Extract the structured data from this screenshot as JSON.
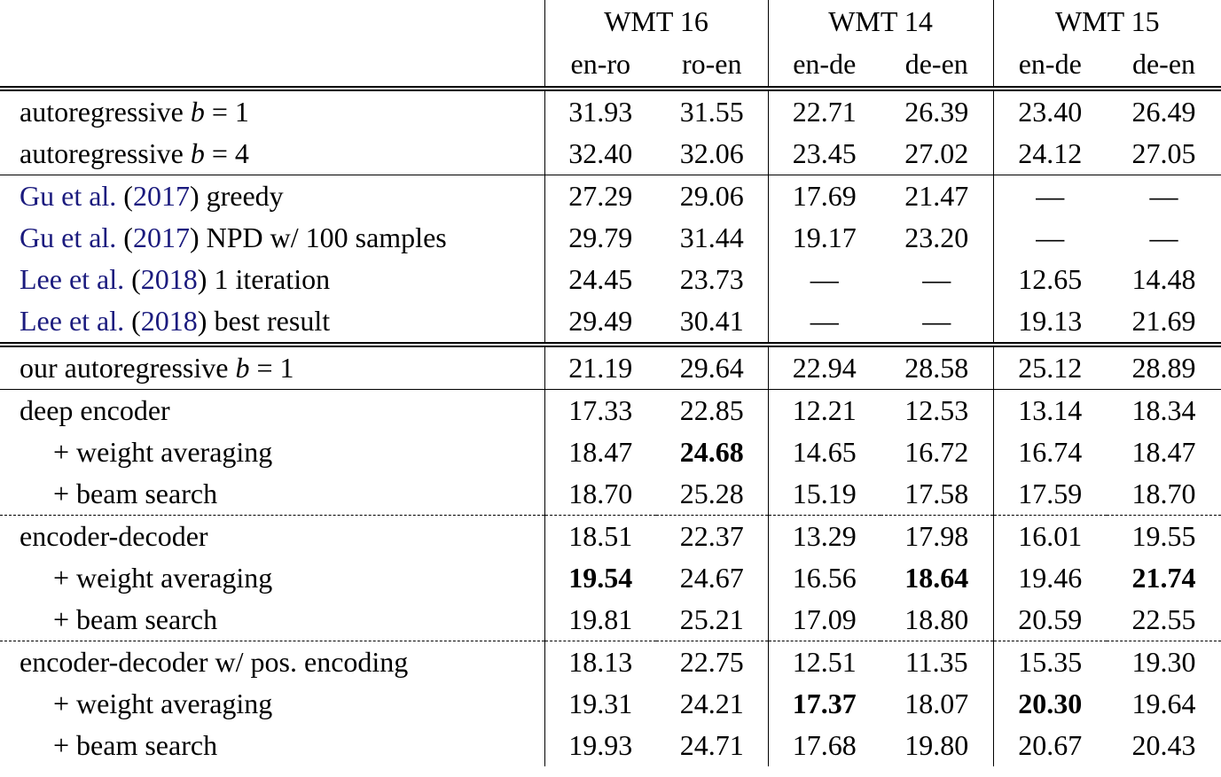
{
  "header": {
    "groups": [
      {
        "name": "WMT 16",
        "columns": [
          "en-ro",
          "ro-en"
        ]
      },
      {
        "name": "WMT 14",
        "columns": [
          "en-de",
          "de-en"
        ]
      },
      {
        "name": "WMT 15",
        "columns": [
          "en-de",
          "de-en"
        ]
      }
    ]
  },
  "table": {
    "groups": [
      {
        "border_top": "double",
        "rows": [
          {
            "label": [
              {
                "text": "autoregressive "
              },
              {
                "text": "b",
                "style": "math"
              },
              {
                "text": " = 1"
              }
            ],
            "values": [
              "31.93",
              "31.55",
              "22.71",
              "26.39",
              "23.40",
              "26.49"
            ]
          },
          {
            "label": [
              {
                "text": "autoregressive "
              },
              {
                "text": "b",
                "style": "math"
              },
              {
                "text": " = 4"
              }
            ],
            "values": [
              "32.40",
              "32.06",
              "23.45",
              "27.02",
              "24.12",
              "27.05"
            ]
          }
        ]
      },
      {
        "border_top": "solid",
        "rows": [
          {
            "label": [
              {
                "text": "Gu et al.",
                "style": "cite"
              },
              {
                "text": " ("
              },
              {
                "text": "2017",
                "style": "cite"
              },
              {
                "text": ") greedy"
              }
            ],
            "values": [
              "27.29",
              "29.06",
              "17.69",
              "21.47",
              "—",
              "—"
            ]
          },
          {
            "label": [
              {
                "text": "Gu et al.",
                "style": "cite"
              },
              {
                "text": " ("
              },
              {
                "text": "2017",
                "style": "cite"
              },
              {
                "text": ") NPD w/ 100 samples"
              }
            ],
            "values": [
              "29.79",
              "31.44",
              "19.17",
              "23.20",
              "—",
              "—"
            ]
          },
          {
            "label": [
              {
                "text": "Lee et al.",
                "style": "cite"
              },
              {
                "text": " ("
              },
              {
                "text": "2018",
                "style": "cite"
              },
              {
                "text": ") 1 iteration"
              }
            ],
            "values": [
              "24.45",
              "23.73",
              "—",
              "—",
              "12.65",
              "14.48"
            ]
          },
          {
            "label": [
              {
                "text": "Lee et al.",
                "style": "cite"
              },
              {
                "text": " ("
              },
              {
                "text": "2018",
                "style": "cite"
              },
              {
                "text": ") best result"
              }
            ],
            "values": [
              "29.49",
              "30.41",
              "—",
              "—",
              "19.13",
              "21.69"
            ]
          }
        ]
      },
      {
        "border_top": "double",
        "rows": [
          {
            "label": [
              {
                "text": "our autoregressive "
              },
              {
                "text": "b",
                "style": "math"
              },
              {
                "text": " = 1"
              }
            ],
            "values": [
              "21.19",
              "29.64",
              "22.94",
              "28.58",
              "25.12",
              "28.89"
            ]
          }
        ]
      },
      {
        "border_top": "solid",
        "rows": [
          {
            "label": [
              {
                "text": "deep encoder"
              }
            ],
            "values": [
              "17.33",
              "22.85",
              "12.21",
              "12.53",
              "13.14",
              "18.34"
            ]
          },
          {
            "label": [
              {
                "text": "+ weight averaging"
              }
            ],
            "indent": true,
            "bold": [
              1
            ],
            "values": [
              "18.47",
              "24.68",
              "14.65",
              "16.72",
              "16.74",
              "18.47"
            ]
          },
          {
            "label": [
              {
                "text": "+ beam search"
              }
            ],
            "indent": true,
            "values": [
              "18.70",
              "25.28",
              "15.19",
              "17.58",
              "17.59",
              "18.70"
            ]
          }
        ]
      },
      {
        "border_top": "dashed",
        "rows": [
          {
            "label": [
              {
                "text": "encoder-decoder"
              }
            ],
            "values": [
              "18.51",
              "22.37",
              "13.29",
              "17.98",
              "16.01",
              "19.55"
            ]
          },
          {
            "label": [
              {
                "text": "+ weight averaging"
              }
            ],
            "indent": true,
            "bold": [
              0,
              3,
              5
            ],
            "values": [
              "19.54",
              "24.67",
              "16.56",
              "18.64",
              "19.46",
              "21.74"
            ]
          },
          {
            "label": [
              {
                "text": "+ beam search"
              }
            ],
            "indent": true,
            "values": [
              "19.81",
              "25.21",
              "17.09",
              "18.80",
              "20.59",
              "22.55"
            ]
          }
        ]
      },
      {
        "border_top": "dashed",
        "rows": [
          {
            "label": [
              {
                "text": "encoder-decoder w/ pos. encoding"
              }
            ],
            "values": [
              "18.13",
              "22.75",
              "12.51",
              "11.35",
              "15.35",
              "19.30"
            ]
          },
          {
            "label": [
              {
                "text": "+ weight averaging"
              }
            ],
            "indent": true,
            "bold": [
              2,
              4
            ],
            "values": [
              "19.31",
              "24.21",
              "17.37",
              "18.07",
              "20.30",
              "19.64"
            ]
          },
          {
            "label": [
              {
                "text": "+ beam search"
              }
            ],
            "indent": true,
            "values": [
              "19.93",
              "24.71",
              "17.68",
              "19.80",
              "20.67",
              "20.43"
            ]
          }
        ]
      }
    ]
  }
}
